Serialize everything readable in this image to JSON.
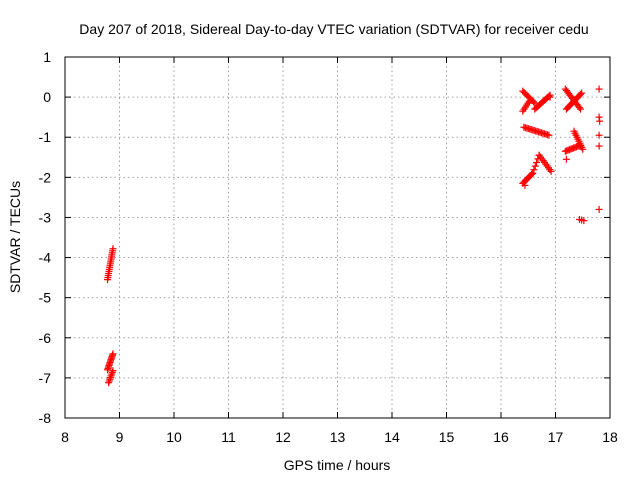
{
  "chart_data": {
    "type": "scatter",
    "title": "Day 207 of 2018, Sidereal Day-to-day VTEC variation (SDTVAR) for receiver cedu",
    "xlabel": "GPS time / hours",
    "ylabel": "SDTVAR / TECUs",
    "xlim": [
      8,
      18
    ],
    "ylim": [
      -8,
      1
    ],
    "xticks": [
      "8",
      "9",
      "10",
      "11",
      "12",
      "13",
      "14",
      "15",
      "16",
      "17",
      "18"
    ],
    "yticks": [
      "1",
      "0",
      "-1",
      "-2",
      "-3",
      "-4",
      "-5",
      "-6",
      "-7",
      "-8"
    ],
    "grid": true,
    "marker": "plus",
    "marker_color": "#ff0000",
    "series": [
      {
        "name": "SDTVAR",
        "clusters": [
          {
            "x_start": 8.78,
            "x_end": 8.88,
            "y_start": -4.55,
            "y_end": -3.78,
            "count": 16
          },
          {
            "x_start": 8.8,
            "x_end": 8.88,
            "y_start": -7.12,
            "y_end": -6.82,
            "count": 8
          },
          {
            "x_start": 8.78,
            "x_end": 8.88,
            "y_start": -6.8,
            "y_end": -6.4,
            "count": 12
          },
          {
            "x_start": 16.4,
            "x_end": 16.58,
            "y_start": -2.15,
            "y_end": -1.9,
            "count": 10
          },
          {
            "x_start": 16.58,
            "x_end": 16.7,
            "y_start": -1.9,
            "y_end": -1.45,
            "count": 6
          },
          {
            "x_start": 16.7,
            "x_end": 16.92,
            "y_start": -1.45,
            "y_end": -1.85,
            "count": 10
          },
          {
            "x_start": 16.42,
            "x_end": 16.88,
            "y_start": -0.75,
            "y_end": -0.95,
            "count": 18
          },
          {
            "x_start": 16.4,
            "x_end": 16.62,
            "y_start": 0.15,
            "y_end": -0.15,
            "count": 10
          },
          {
            "x_start": 16.4,
            "x_end": 16.52,
            "y_start": -0.35,
            "y_end": -0.1,
            "count": 6
          },
          {
            "x_start": 16.62,
            "x_end": 16.9,
            "y_start": -0.3,
            "y_end": 0.05,
            "count": 14
          },
          {
            "x_start": 17.18,
            "x_end": 17.46,
            "y_start": 0.2,
            "y_end": -0.3,
            "count": 14
          },
          {
            "x_start": 17.2,
            "x_end": 17.48,
            "y_start": -0.3,
            "y_end": 0.1,
            "count": 14
          },
          {
            "x_start": 17.34,
            "x_end": 17.5,
            "y_start": -0.85,
            "y_end": -1.3,
            "count": 10
          },
          {
            "x_start": 17.18,
            "x_end": 17.46,
            "y_start": -1.35,
            "y_end": -1.2,
            "count": 12
          },
          {
            "x_start": 17.44,
            "x_end": 17.52,
            "y_start": -3.05,
            "y_end": -3.08,
            "count": 3
          }
        ],
        "points": [
          {
            "x": 17.2,
            "y": -1.55
          },
          {
            "x": 17.8,
            "y": 0.2
          },
          {
            "x": 17.8,
            "y": -0.5
          },
          {
            "x": 17.81,
            "y": -0.6
          },
          {
            "x": 17.8,
            "y": -0.95
          },
          {
            "x": 17.8,
            "y": -1.22
          },
          {
            "x": 17.8,
            "y": -2.8
          },
          {
            "x": 16.9,
            "y": 0.0
          },
          {
            "x": 16.44,
            "y": -2.2
          }
        ]
      }
    ]
  }
}
